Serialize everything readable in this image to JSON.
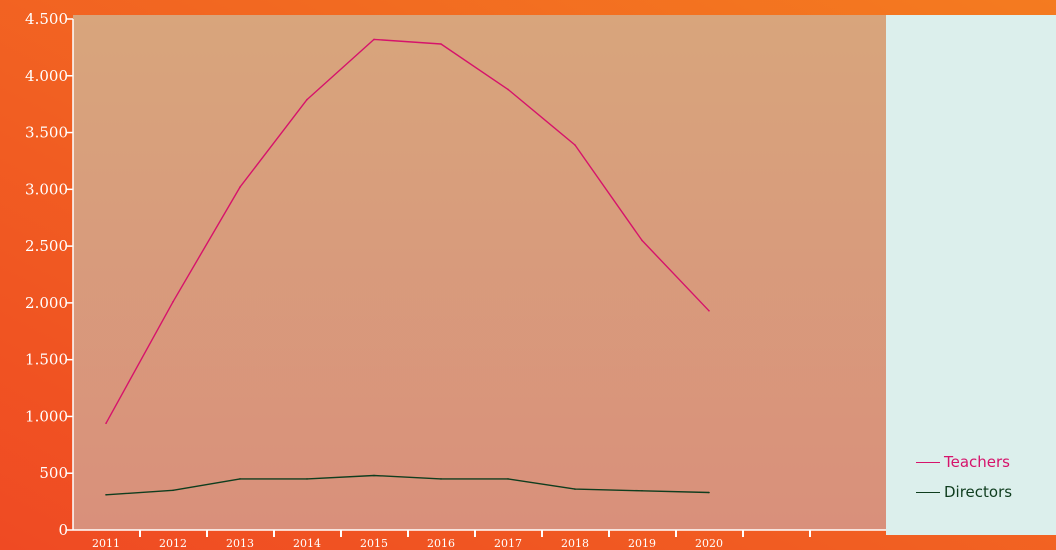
{
  "colors": {
    "background_left": "#ef4a23",
    "background_right": "#f47b20",
    "plot_top": "#d8a57c",
    "plot_bottom": "#d9907b",
    "legend_panel": "#dcefec",
    "axis": "#ffffff",
    "tick_text": "#ffffff"
  },
  "chart_data": {
    "type": "line",
    "title": "",
    "xlabel": "",
    "ylabel": "",
    "categories": [
      "2011",
      "2012",
      "2013",
      "2014",
      "2015",
      "2016",
      "2017",
      "2018",
      "2019",
      "2020"
    ],
    "ylim": [
      0,
      4500
    ],
    "yticks": [
      0,
      500,
      1000,
      1500,
      2000,
      2500,
      3000,
      3500,
      4000,
      4500
    ],
    "ytick_labels": [
      "0",
      "500",
      "1.000",
      "1.500",
      "2.000",
      "2.500",
      "3.000",
      "3.500",
      "4.000",
      "4.500"
    ],
    "grid": false,
    "legend_position": "bottom-right",
    "series": [
      {
        "name": "Teachers",
        "color": "#d6136b",
        "values": [
          940,
          2010,
          3020,
          3790,
          4320,
          4280,
          3880,
          3390,
          2550,
          1930
        ]
      },
      {
        "name": "Directors",
        "color": "#0f3d1e",
        "values": [
          310,
          350,
          450,
          450,
          480,
          450,
          450,
          360,
          345,
          330
        ]
      }
    ]
  }
}
